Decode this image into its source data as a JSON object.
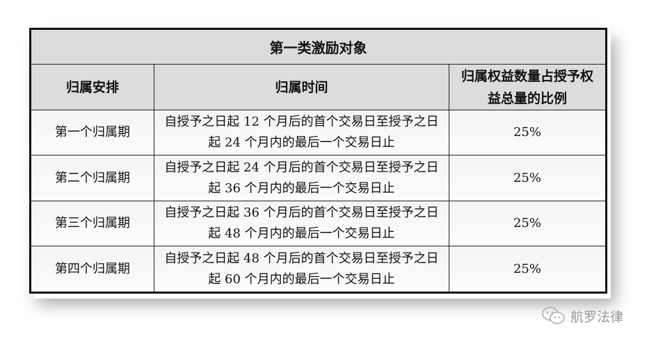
{
  "table": {
    "title": "第一类激励对象",
    "headers": [
      "归属安排",
      "归属时间",
      "归属权益数量占授予权益总量的比例"
    ],
    "rows": [
      {
        "period": "第一个归属期",
        "time": "自授予之日起 12 个月后的首个交易日至授予之日起 24 个月内的最后一个交易日止",
        "ratio": "25%"
      },
      {
        "period": "第二个归属期",
        "time": "自授予之日起 24 个月后的首个交易日至授予之日起 36 个月内的最后一个交易日止",
        "ratio": "25%"
      },
      {
        "period": "第三个归属期",
        "time": "自授予之日起 36 个月后的首个交易日至授予之日起 48 个月内的最后一个交易日止",
        "ratio": "25%"
      },
      {
        "period": "第四个归属期",
        "time": "自授予之日起 48 个月后的首个交易日至授予之日起 60 个月内的最后一个交易日止",
        "ratio": "25%"
      }
    ]
  },
  "watermark": {
    "icon": "wechat-icon",
    "text": "航罗法律"
  }
}
